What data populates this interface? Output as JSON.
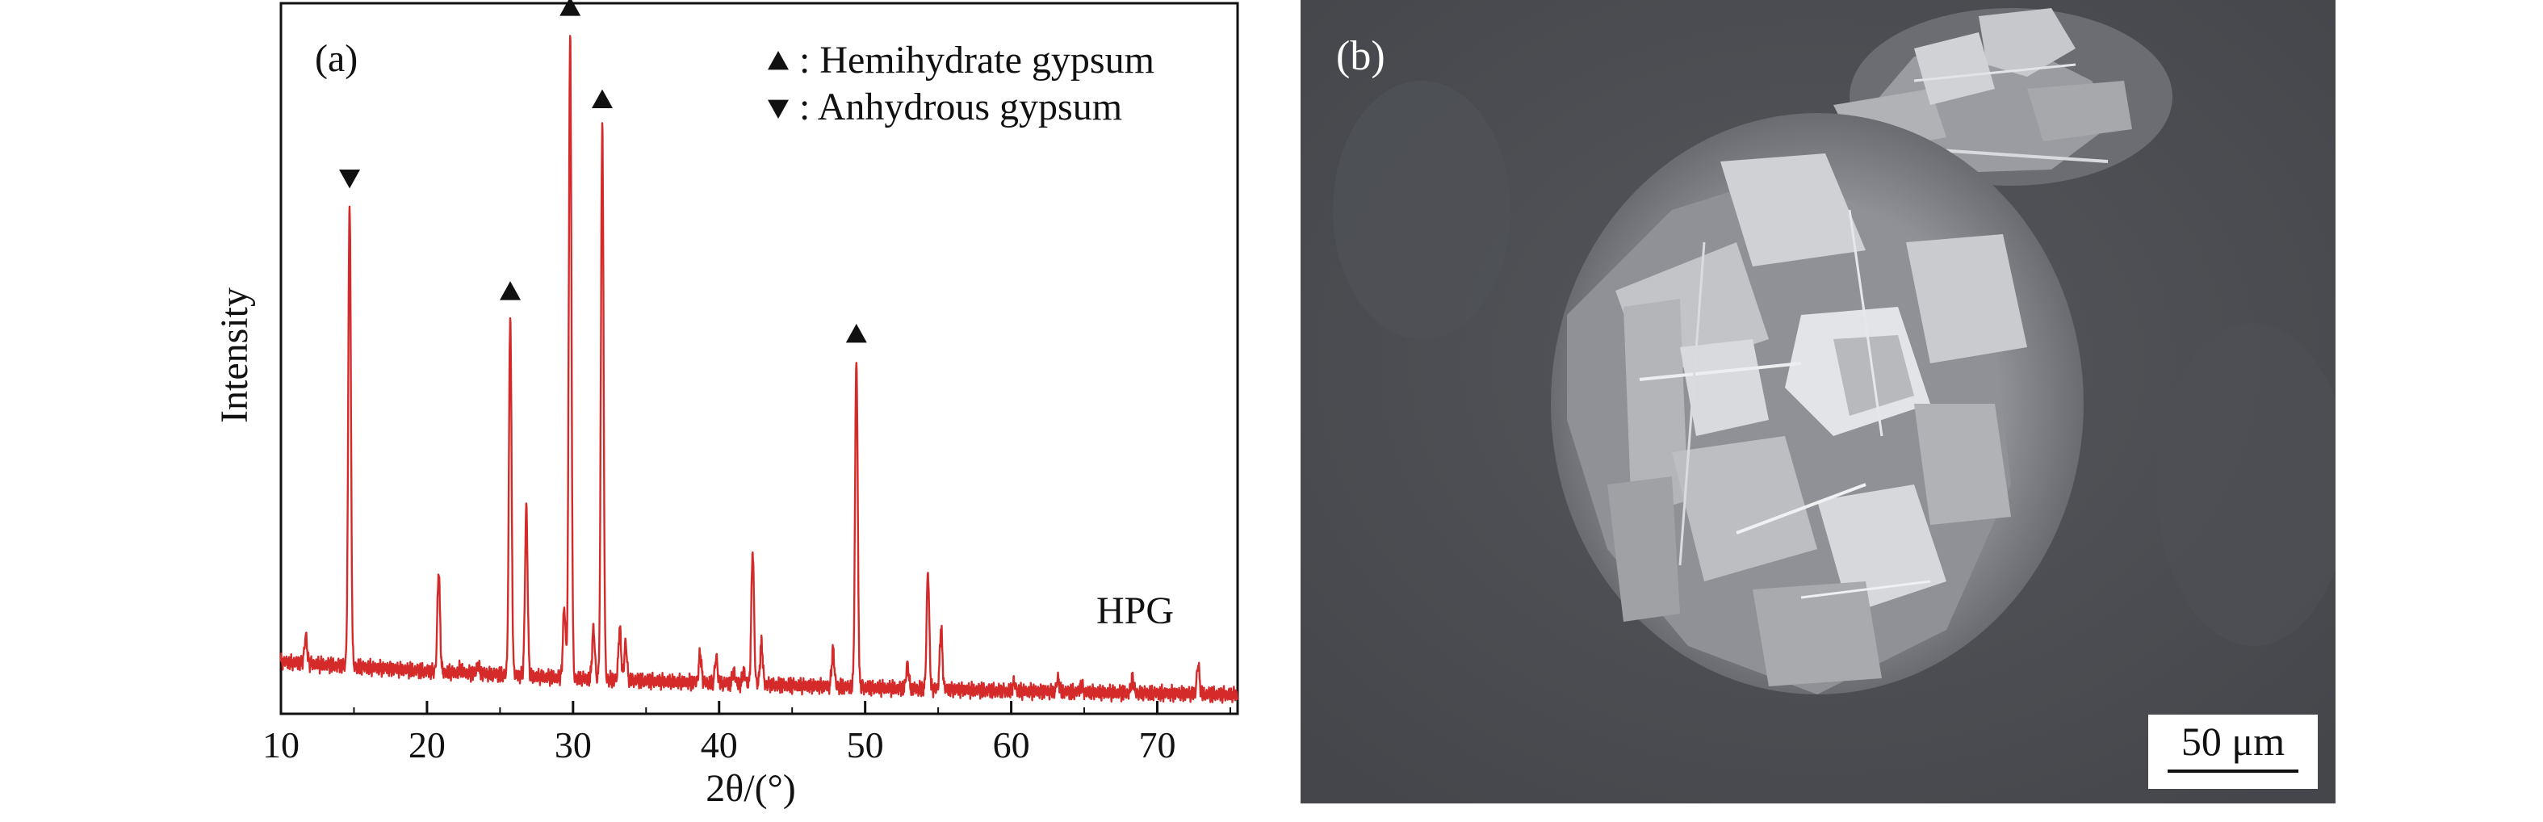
{
  "panels": {
    "a_label": "(a)",
    "b_label": "(b)"
  },
  "chart_data": {
    "type": "line",
    "xlabel": "2θ/(°)",
    "ylabel": "Intensity",
    "xlim": [
      10,
      75.5
    ],
    "ylim": [
      0,
      1
    ],
    "xticks": [
      10,
      20,
      30,
      40,
      50,
      60,
      70
    ],
    "grid": false,
    "legend_position": "top-right",
    "color": "#d42a2a",
    "series_label": "HPG",
    "baseline": {
      "x": [
        10,
        20,
        30,
        40,
        50,
        60,
        75.5
      ],
      "y": [
        0.073,
        0.06,
        0.05,
        0.043,
        0.037,
        0.032,
        0.027
      ]
    },
    "peaks": [
      {
        "x": 11.7,
        "y": 0.11
      },
      {
        "x": 14.7,
        "y": 0.72
      },
      {
        "x": 20.8,
        "y": 0.2
      },
      {
        "x": 22.3,
        "y": 0.065
      },
      {
        "x": 23.5,
        "y": 0.07
      },
      {
        "x": 25.7,
        "y": 0.56
      },
      {
        "x": 26.8,
        "y": 0.29
      },
      {
        "x": 29.4,
        "y": 0.15
      },
      {
        "x": 29.8,
        "y": 0.96
      },
      {
        "x": 31.4,
        "y": 0.12
      },
      {
        "x": 32.0,
        "y": 0.83
      },
      {
        "x": 33.2,
        "y": 0.12
      },
      {
        "x": 33.6,
        "y": 0.1
      },
      {
        "x": 36.8,
        "y": 0.045
      },
      {
        "x": 38.7,
        "y": 0.085
      },
      {
        "x": 39.8,
        "y": 0.08
      },
      {
        "x": 41.0,
        "y": 0.06
      },
      {
        "x": 41.7,
        "y": 0.06
      },
      {
        "x": 42.3,
        "y": 0.23
      },
      {
        "x": 42.9,
        "y": 0.1
      },
      {
        "x": 47.8,
        "y": 0.09
      },
      {
        "x": 49.4,
        "y": 0.5
      },
      {
        "x": 52.9,
        "y": 0.07
      },
      {
        "x": 54.3,
        "y": 0.2
      },
      {
        "x": 55.2,
        "y": 0.12
      },
      {
        "x": 60.2,
        "y": 0.045
      },
      {
        "x": 63.2,
        "y": 0.05
      },
      {
        "x": 64.8,
        "y": 0.04
      },
      {
        "x": 68.3,
        "y": 0.05
      },
      {
        "x": 72.8,
        "y": 0.07
      }
    ],
    "markers": [
      {
        "x": 14.7,
        "type": "anhydrous"
      },
      {
        "x": 25.7,
        "type": "hemihydrate"
      },
      {
        "x": 29.8,
        "type": "hemihydrate"
      },
      {
        "x": 32.0,
        "type": "hemihydrate"
      },
      {
        "x": 49.4,
        "type": "hemihydrate"
      }
    ],
    "legend": [
      {
        "symbol": "▲",
        "label": "Hemihydrate gypsum"
      },
      {
        "symbol": "▼",
        "label": "Anhydrous gypsum"
      }
    ]
  },
  "sem_image": {
    "scale_bar_label": "50 μm",
    "background_color": "#4b4d52"
  }
}
